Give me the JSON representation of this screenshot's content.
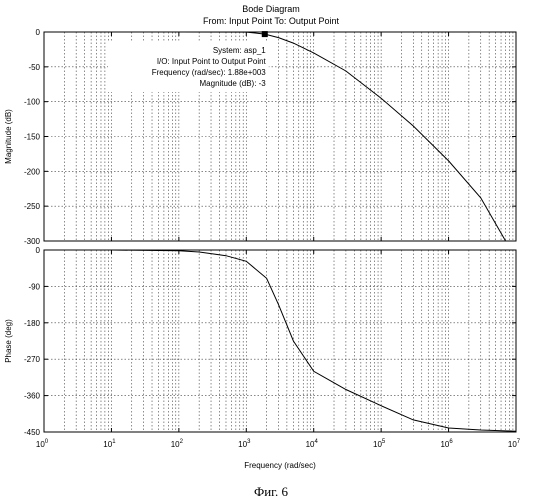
{
  "chart_data": {
    "type": "line",
    "title": "Bode Diagram",
    "subtitle": "From: Input Point  To: Output Point",
    "xlabel": "Frequency  (rad/sec)",
    "xscale": "log",
    "xlim": [
      1,
      10000000
    ],
    "x_ticks": [
      1,
      10,
      100,
      1000,
      10000,
      100000,
      1000000,
      10000000
    ],
    "x_tick_labels": [
      {
        "base": "10",
        "exp": "0"
      },
      {
        "base": "10",
        "exp": "1"
      },
      {
        "base": "10",
        "exp": "2"
      },
      {
        "base": "10",
        "exp": "3"
      },
      {
        "base": "10",
        "exp": "4"
      },
      {
        "base": "10",
        "exp": "5"
      },
      {
        "base": "10",
        "exp": "6"
      },
      {
        "base": "10",
        "exp": "7"
      }
    ],
    "grid": true,
    "panels": [
      {
        "ylabel": "Magnitude (dB)",
        "ylim": [
          -300,
          0
        ],
        "y_ticks": [
          0,
          -50,
          -100,
          -150,
          -200,
          -250,
          -300
        ],
        "y_tick_labels": [
          "0",
          "-50",
          "-100",
          "-150",
          "-200",
          "-250",
          "-300"
        ],
        "series": [
          {
            "x": [
              1,
              100,
              1000,
              1880,
              3000,
              5000,
              10000,
              30000,
              100000,
              300000,
              1000000,
              3000000,
              7000000
            ],
            "values": [
              0,
              0,
              -0.2,
              -3,
              -8,
              -16,
              -30,
              -56,
              -95,
              -135,
              -185,
              -238,
              -300
            ]
          }
        ],
        "datatip": {
          "x": 1880,
          "y": -3,
          "lines": [
            "System: asp_1",
            "I/O: Input Point to Output Point",
            "Frequency (rad/sec): 1.88e+003",
            "Magnitude (dB): -3"
          ]
        }
      },
      {
        "ylabel": "Phase (deg)",
        "ylim": [
          -450,
          0
        ],
        "y_ticks": [
          0,
          -90,
          -180,
          -270,
          -360,
          -450
        ],
        "y_tick_labels": [
          "0",
          "-90",
          "-180",
          "-270",
          "-360",
          "-450"
        ],
        "series": [
          {
            "x": [
              1,
              10,
              100,
              200,
              500,
              1000,
              2000,
              3000,
              5000,
              10000,
              30000,
              100000,
              300000,
              1000000,
              3000000,
              10000000
            ],
            "values": [
              0,
              0,
              -2,
              -5,
              -14,
              -28,
              -70,
              -135,
              -225,
              -300,
              -345,
              -385,
              -420,
              -440,
              -445,
              -448
            ]
          }
        ]
      }
    ]
  },
  "caption": "Фиг. 6"
}
